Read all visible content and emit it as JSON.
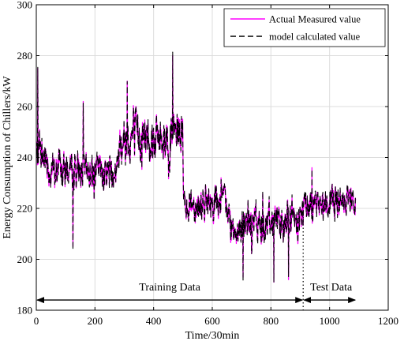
{
  "chart_data": {
    "type": "line",
    "title": "",
    "xlabel": "Time/30min",
    "ylabel": "Energy Consumption of Chillers/kW",
    "xlim": [
      0,
      1200
    ],
    "ylim": [
      180,
      300
    ],
    "xticks": [
      0,
      200,
      400,
      600,
      800,
      1000,
      1200
    ],
    "yticks": [
      180,
      200,
      220,
      240,
      260,
      280,
      300
    ],
    "grid": true,
    "legend_position": "top-right",
    "n_points": 1090,
    "series": [
      {
        "name": "Actual Measured value",
        "color": "#ff00ff",
        "style": "solid",
        "segments": [
          {
            "x_range": [
              0,
              40
            ],
            "mean": 240,
            "amplitude": 12
          },
          {
            "x_range": [
              40,
              280
            ],
            "mean": 235,
            "amplitude": 10
          },
          {
            "x_range": [
              280,
              500
            ],
            "mean": 248,
            "amplitude": 14
          },
          {
            "x_range": [
              500,
              650
            ],
            "mean": 222,
            "amplitude": 10
          },
          {
            "x_range": [
              650,
              780
            ],
            "mean": 214,
            "amplitude": 12
          },
          {
            "x_range": [
              780,
              910
            ],
            "mean": 216,
            "amplitude": 11
          },
          {
            "x_range": [
              910,
              1090
            ],
            "mean": 222,
            "amplitude": 9
          }
        ],
        "peaks": [
          {
            "x": 5,
            "y": 275
          },
          {
            "x": 160,
            "y": 262
          },
          {
            "x": 310,
            "y": 270
          },
          {
            "x": 465,
            "y": 280
          },
          {
            "x": 630,
            "y": 232
          },
          {
            "x": 940,
            "y": 236
          }
        ],
        "troughs": [
          {
            "x": 125,
            "y": 205
          },
          {
            "x": 705,
            "y": 193
          },
          {
            "x": 810,
            "y": 191
          },
          {
            "x": 860,
            "y": 192
          }
        ]
      },
      {
        "name": "model calculated value",
        "color": "#000000",
        "style": "dashed",
        "tracks": "Actual Measured value"
      }
    ],
    "annotations": [
      {
        "text": "Training Data",
        "x_from": 0,
        "x_to": 910,
        "y": 184
      },
      {
        "text": "Test Data",
        "x_from": 910,
        "x_to": 1090,
        "y": 184
      }
    ],
    "split_x": 910
  }
}
